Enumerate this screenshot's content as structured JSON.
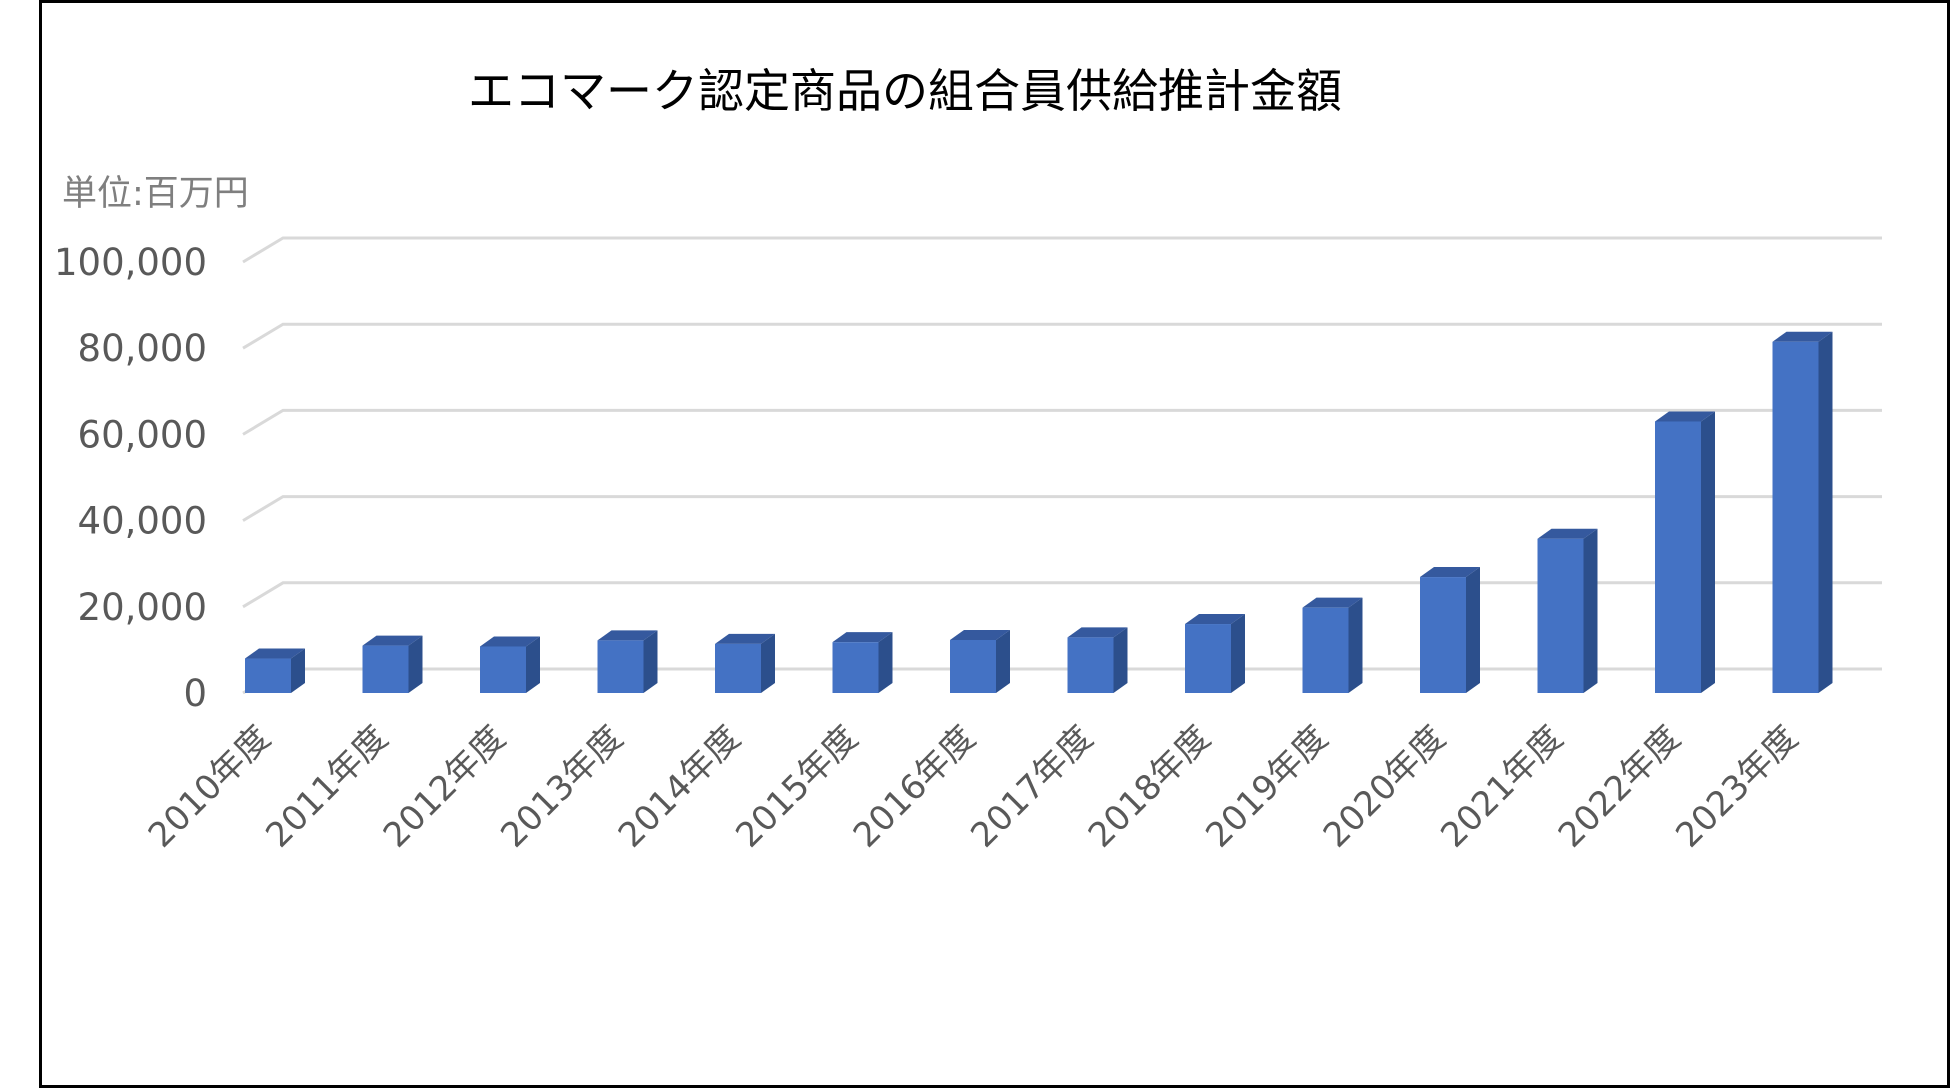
{
  "colors": {
    "bar_front": "#4472c4",
    "bar_side": "#2c4f8c",
    "bar_top": "#35599e",
    "gridline": "#d9d9d9",
    "axis_text": "#595959",
    "unit_text": "#7f7f7f"
  },
  "chart_data": {
    "type": "bar",
    "style": "3d-column",
    "title": "エコマーク認定商品の組合員供給推計金額",
    "unit_label": "単位:百万円",
    "xlabel": "",
    "ylabel": "",
    "ylim": [
      0,
      100000
    ],
    "yticks": [
      0,
      20000,
      40000,
      60000,
      80000,
      100000
    ],
    "ytick_labels": [
      "0",
      "20,000",
      "40,000",
      "60,000",
      "80,000",
      "100,000"
    ],
    "grid": true,
    "legend": "none",
    "categories": [
      "2010年度",
      "2011年度",
      "2012年度",
      "2013年度",
      "2014年度",
      "2015年度",
      "2016年度",
      "2017年度",
      "2018年度",
      "2019年度",
      "2020年度",
      "2021年度",
      "2022年度",
      "2023年度"
    ],
    "values": [
      8000,
      11000,
      10800,
      12200,
      11400,
      11800,
      12300,
      12900,
      16000,
      19800,
      26900,
      35800,
      63000,
      81500
    ]
  }
}
